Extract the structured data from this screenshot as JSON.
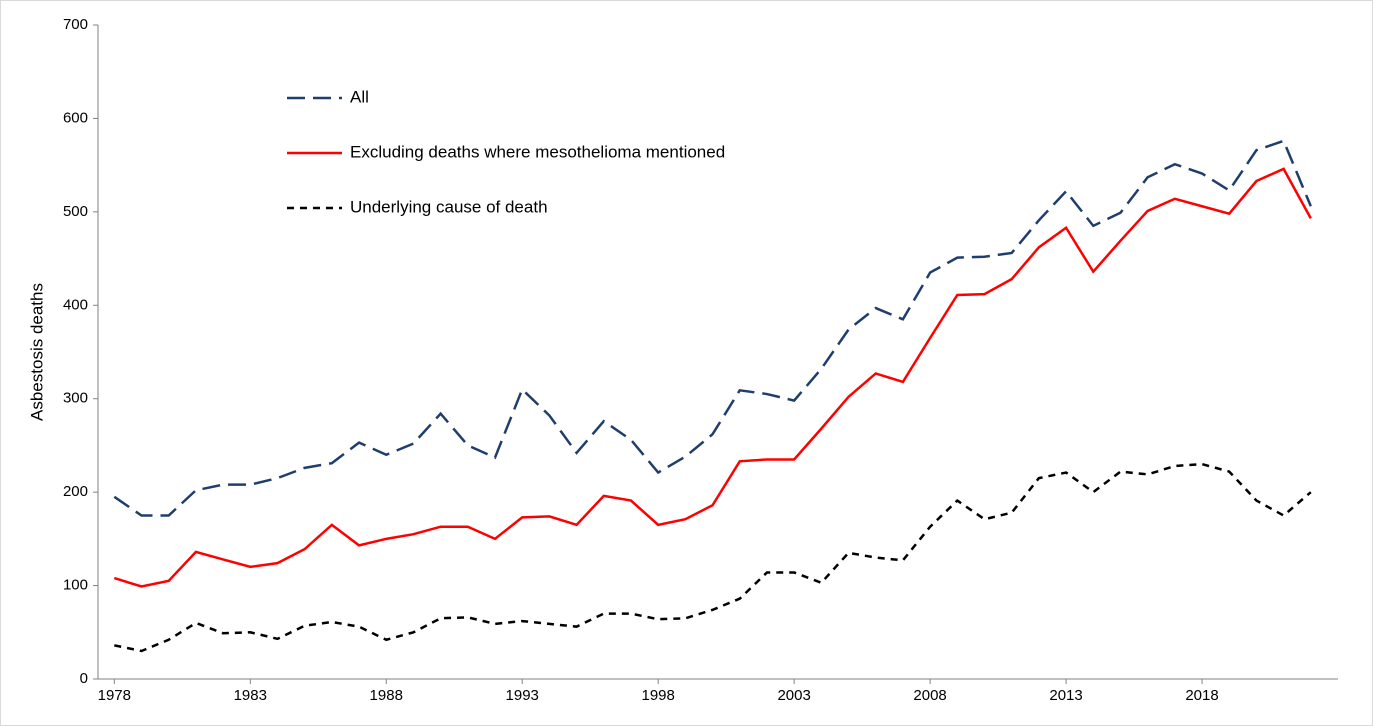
{
  "chart_data": {
    "type": "line",
    "y_label": "Asbestosis deaths",
    "x": [
      1978,
      1979,
      1980,
      1981,
      1982,
      1983,
      1984,
      1985,
      1986,
      1987,
      1988,
      1989,
      1990,
      1991,
      1992,
      1993,
      1994,
      1995,
      1996,
      1997,
      1998,
      1999,
      2000,
      2001,
      2002,
      2003,
      2004,
      2005,
      2006,
      2007,
      2008,
      2009,
      2010,
      2011,
      2012,
      2013,
      2014,
      2015,
      2016,
      2017,
      2018,
      2019,
      2020,
      2021,
      2022
    ],
    "series": [
      {
        "name": "All",
        "color": "#1f3e6e",
        "style": "long-dash",
        "values": [
          195,
          175,
          175,
          202,
          208,
          208,
          215,
          226,
          231,
          253,
          240,
          252,
          284,
          250,
          237,
          310,
          282,
          242,
          276,
          256,
          221,
          238,
          262,
          309,
          305,
          298,
          332,
          374,
          397,
          385,
          435,
          451,
          452,
          456,
          491,
          522,
          485,
          499,
          537,
          551,
          541,
          523,
          566,
          576,
          506
        ]
      },
      {
        "name": "Excluding deaths where mesothelioma mentioned",
        "color": "#ff0000",
        "style": "solid",
        "values": [
          108,
          99,
          105,
          136,
          128,
          120,
          124,
          139,
          165,
          143,
          150,
          155,
          163,
          163,
          150,
          173,
          174,
          165,
          196,
          191,
          165,
          171,
          186,
          233,
          235,
          235,
          268,
          302,
          327,
          318,
          365,
          411,
          412,
          428,
          462,
          483,
          436,
          469,
          501,
          514,
          506,
          498,
          533,
          546,
          493
        ]
      },
      {
        "name": "Underlying cause of death",
        "color": "#000000",
        "style": "short-dash",
        "values": [
          36,
          30,
          42,
          60,
          49,
          50,
          43,
          57,
          61,
          56,
          42,
          50,
          65,
          66,
          59,
          62,
          59,
          56,
          70,
          70,
          64,
          65,
          74,
          86,
          114,
          114,
          103,
          135,
          130,
          127,
          163,
          191,
          171,
          178,
          215,
          221,
          200,
          222,
          219,
          228,
          230,
          222,
          191,
          175,
          200
        ]
      }
    ],
    "xlim": [
      1977.4,
      2023
    ],
    "xticks": [
      1978,
      1983,
      1988,
      1993,
      1998,
      2003,
      2008,
      2013,
      2018
    ],
    "ylim": [
      0,
      700
    ],
    "yticks": [
      0,
      100,
      200,
      300,
      400,
      500,
      600,
      700
    ],
    "grid": false,
    "legend": "upper-left"
  }
}
